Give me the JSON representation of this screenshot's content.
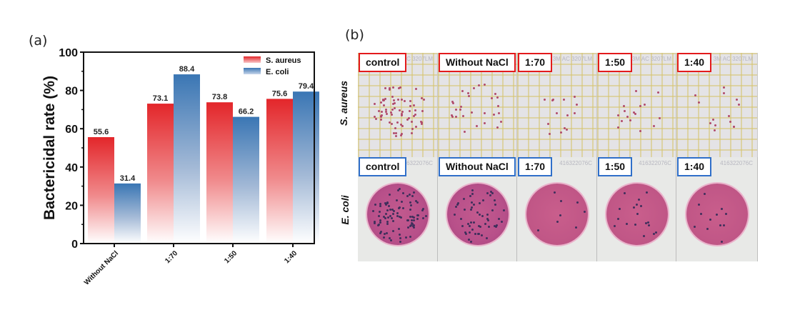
{
  "panels": {
    "a_label": "(a)",
    "b_label": "(b)"
  },
  "chart_data": {
    "type": "bar",
    "title": "",
    "xlabel": "",
    "ylabel": "Bactericidal rate (%)",
    "ylim": [
      0,
      100
    ],
    "yticks": [
      "0",
      "20",
      "40",
      "60",
      "80",
      "100"
    ],
    "categories": [
      "Without NaCl",
      "1:70",
      "1:50",
      "1:40"
    ],
    "series": [
      {
        "name": "S. aureus",
        "color": "#e3262a",
        "values": [
          55.6,
          73.1,
          73.8,
          75.6
        ],
        "labels": [
          "55.6",
          "73.1",
          "73.8",
          "75.6"
        ]
      },
      {
        "name": "E. coli",
        "color": "#3a76b4",
        "values": [
          31.4,
          88.4,
          66.2,
          79.4
        ],
        "labels": [
          "31.4",
          "88.4",
          "66.2",
          "79.4"
        ]
      }
    ],
    "legend": "top-right",
    "grid": false
  },
  "photos": {
    "rows": [
      {
        "organism": "S. aureus",
        "tag_color": "#e31a1c"
      },
      {
        "organism": "E. coli",
        "tag_color": "#2f6fc9"
      }
    ],
    "columns": [
      "control",
      "Without NaCl",
      "1:70",
      "1:50",
      "1:40"
    ],
    "stamp_top": "3M AC 3207LM",
    "stamp_bottom": "416322076C"
  }
}
